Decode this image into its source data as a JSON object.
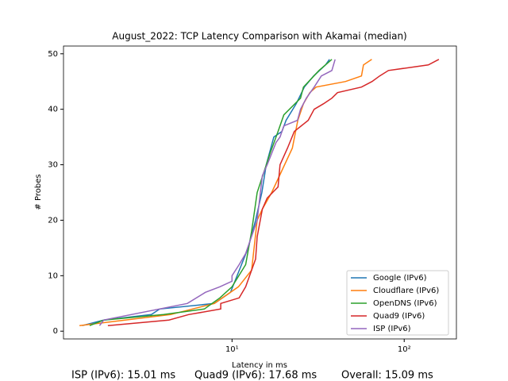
{
  "chart_data": {
    "type": "line",
    "title": "August_2022: TCP Latency Comparison with Akamai (median)",
    "x_label": "Latency in ms",
    "y_label": "# Probes",
    "x_scale": "log",
    "legend": "lower right",
    "xlim": [
      1.05,
      201
    ],
    "ylim": [
      -1.4,
      51.4
    ],
    "xticks": [
      {
        "value": 10,
        "label": "10¹"
      },
      {
        "value": 100,
        "label": "10²"
      }
    ],
    "yticks": [
      0,
      10,
      20,
      30,
      40,
      50
    ],
    "series": [
      {
        "name": "Google (IPv6)",
        "color": "#1f77b4",
        "x": [
          1.35,
          1.8,
          3.4,
          3.8,
          7.9,
          9.8,
          12.4,
          13.7,
          14.9,
          15.8,
          17.5,
          19.5,
          20.6,
          23.6,
          26.3,
          29.8,
          34.9,
          36.8
        ],
        "values": [
          1,
          2,
          3,
          4,
          5,
          7,
          15,
          20,
          25,
          30,
          35,
          36,
          38,
          41,
          44,
          46,
          48,
          49
        ]
      },
      {
        "name": "Cloudflare (IPv6)",
        "color": "#ff7f0e",
        "x": [
          1.3,
          4.4,
          7.9,
          10.9,
          13,
          14,
          15,
          17,
          22.4,
          24.1,
          26,
          28.3,
          30.8,
          45.6,
          56.5,
          58,
          64.8
        ],
        "values": [
          1,
          3,
          5,
          8,
          11,
          20,
          22,
          25,
          33,
          38,
          41,
          43,
          44,
          45,
          46,
          48,
          49
        ]
      },
      {
        "name": "OpenDNS (IPv6)",
        "color": "#2ca02c",
        "x": [
          1.49,
          1.8,
          4,
          6.9,
          8.5,
          10,
          12,
          13,
          14,
          16.6,
          18.5,
          20,
          25,
          26,
          32,
          38
        ],
        "values": [
          1,
          2,
          3,
          4,
          6,
          8,
          12,
          18,
          25,
          32,
          36,
          39,
          42,
          44,
          47,
          49
        ]
      },
      {
        "name": "Quad9 (IPv6)",
        "color": "#d62728",
        "x": [
          1.9,
          4.3,
          5.6,
          8.6,
          8.6,
          11,
          12,
          13.7,
          14,
          15,
          16,
          18.5,
          19,
          21,
          23,
          27.7,
          30,
          34,
          38,
          41,
          56.5,
          65,
          72,
          81,
          138,
          159
        ],
        "values": [
          1,
          2,
          3,
          4,
          5,
          6,
          8,
          13,
          17,
          22,
          24,
          26,
          30,
          33,
          36,
          38,
          40,
          41,
          42,
          43,
          44,
          45,
          46,
          47,
          48,
          49
        ]
      },
      {
        "name": "ISP (IPv6)",
        "color": "#9467bd",
        "x": [
          1.7,
          1.8,
          5.5,
          7,
          8.5,
          10,
          10,
          11,
          12,
          14,
          15,
          16,
          18,
          19,
          20,
          24,
          25,
          27,
          30,
          33,
          38,
          39.7
        ],
        "values": [
          1,
          2,
          5,
          7,
          8,
          9,
          10,
          12,
          14,
          20,
          28,
          30,
          34,
          35,
          37,
          38,
          40,
          42,
          44,
          46,
          47,
          49
        ]
      }
    ],
    "annotations": [
      "ISP (IPv6): 15.01 ms",
      "Quad9 (IPv6): 17.68 ms",
      "Overall: 15.09 ms"
    ]
  }
}
